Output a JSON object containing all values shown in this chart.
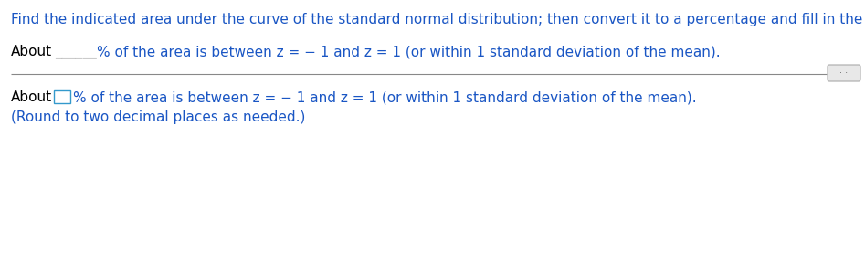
{
  "title_text": "Find the indicated area under the curve of the standard normal distribution; then convert it to a percentage and fill in the blank.",
  "line1_rest": "% of the area is between z = − 1 and z = 1 (or within 1 standard deviation of the mean).",
  "line2_rest": "% of the area is between z = − 1 and z = 1 (or within 1 standard deviation of the mean).",
  "line3": "(Round to two decimal places as needed.)",
  "black_color": "#000000",
  "blue_color": "#1a56c4",
  "divider_color": "#888888",
  "box_edge_color": "#3399cc",
  "bg_color": "#ffffff",
  "title_fontsize": 11.0,
  "body_fontsize": 11.0
}
